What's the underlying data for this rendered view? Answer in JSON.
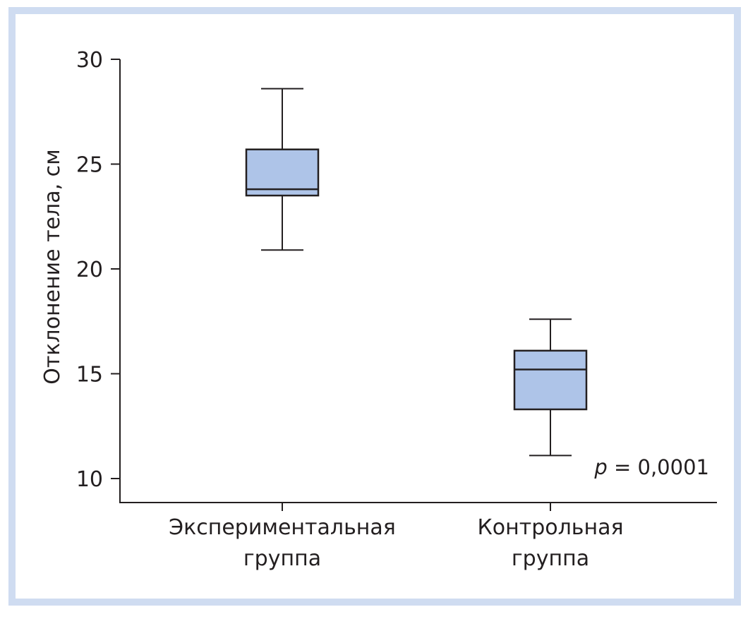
{
  "colors": {
    "frame": "#cfdcf1",
    "box_fill": "#aec4e8",
    "line": "#231f20"
  },
  "chart_data": {
    "type": "boxplot",
    "title": "",
    "ylabel": "Отклонение тела, см",
    "xlabel": "",
    "ylim": [
      10,
      30
    ],
    "yticks": [
      "10",
      "15",
      "20",
      "25",
      "30"
    ],
    "ytick_values": [
      10,
      15,
      20,
      25,
      30
    ],
    "grid": false,
    "categories": [
      {
        "label_line1": "Экспериментальная",
        "label_line2": "группа"
      },
      {
        "label_line1": "Контрольная",
        "label_line2": "группа"
      }
    ],
    "boxes": [
      {
        "whisker_low": 20.9,
        "q1": 23.5,
        "median": 23.8,
        "q3": 25.7,
        "whisker_high": 28.6
      },
      {
        "whisker_low": 11.1,
        "q1": 13.3,
        "median": 15.2,
        "q3": 16.1,
        "whisker_high": 17.6
      }
    ],
    "annotation": {
      "p_symbol": "p",
      "p_text": " = 0,0001"
    }
  }
}
